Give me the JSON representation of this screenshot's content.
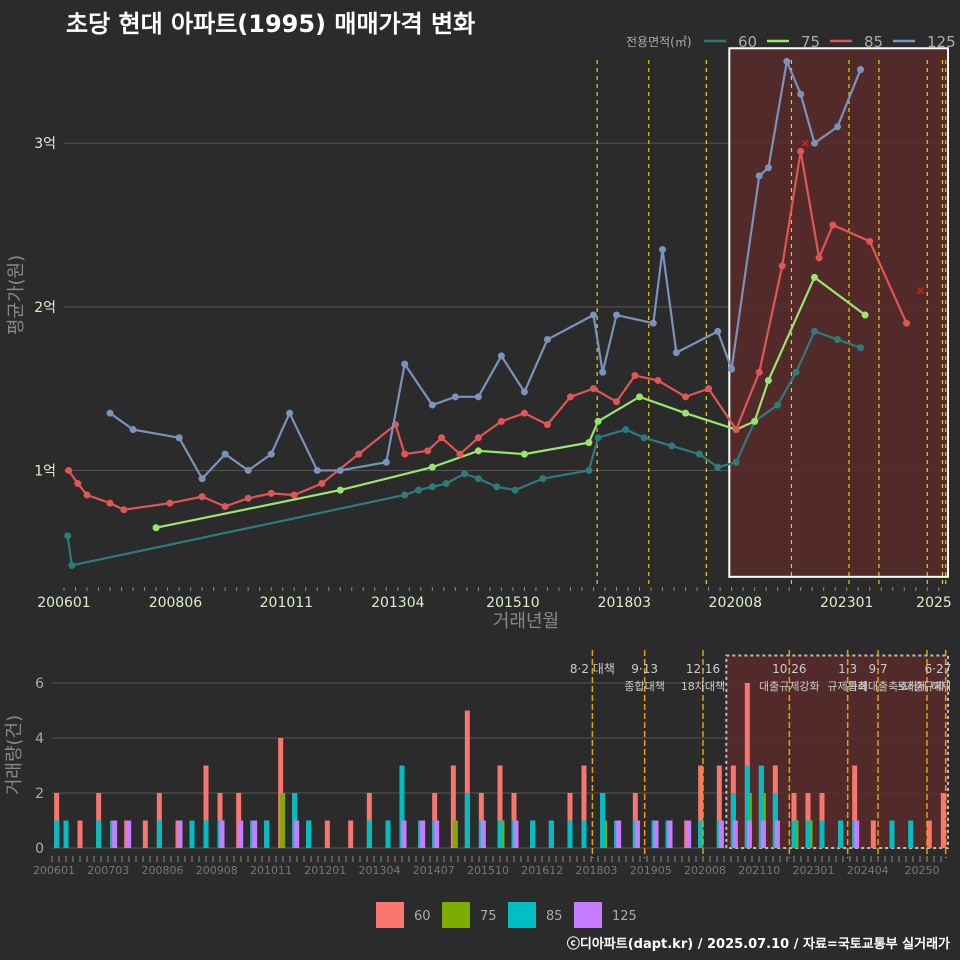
{
  "title": "초당 현대 아파트(1995) 매매가격 변화",
  "footer": "ⓒ디아파트(dapt.kr) / 2025.07.10 / 자료=국토교통부 실거래가",
  "colors": {
    "bg": "#2b2b2b",
    "grid": "#555555",
    "axis_text": "#ddeecc",
    "line60": "#2e7b7b",
    "line75": "#99e66e",
    "line85": "#e05555",
    "line125": "#7a93bb",
    "bar60": "#f8766d",
    "bar75": "#7cae00",
    "bar85": "#00bfc4",
    "bar125": "#c77cff",
    "policy": "#e6d000",
    "highlight_fill": "#5a2a2a",
    "highlight_edge": "#ffffff"
  },
  "chart_data": [
    {
      "type": "line",
      "ylabel": "평균가(원)",
      "xlabel": "거래년월",
      "legend_title": "전용면적(㎡)",
      "x_tick_labels": [
        "200601",
        "200806",
        "201011",
        "201304",
        "201510",
        "201803",
        "202008",
        "202301",
        "2025"
      ],
      "x_tick_values": [
        2006.0,
        2008.42,
        2010.83,
        2013.25,
        2015.75,
        2018.17,
        2020.58,
        2023.0,
        2025.0
      ],
      "xlim": [
        2006.0,
        2025.2
      ],
      "y_tick_labels": [
        "1억",
        "2억",
        "3억"
      ],
      "y_tick_values": [
        1.0,
        2.0,
        3.0
      ],
      "ylim": [
        0.3,
        3.6
      ],
      "policy_lines": [
        2017.58,
        2018.7,
        2019.95,
        2021.8,
        2023.05,
        2023.7,
        2024.75,
        2025.08,
        2025.15
      ],
      "highlight": {
        "x0": 2020.45,
        "x1": 2025.2,
        "y0": 0.35,
        "y1": 3.58
      },
      "series": [
        {
          "name": "60",
          "x": [
            2006.08,
            2006.17,
            2013.4,
            2013.7,
            2014.0,
            2014.3,
            2014.7,
            2015.0,
            2015.4,
            2015.8,
            2016.4,
            2017.4,
            2017.6,
            2018.2,
            2018.6,
            2019.2,
            2019.8,
            2020.2,
            2020.6,
            2021.0,
            2021.5,
            2021.9,
            2022.3,
            2022.8,
            2023.3
          ],
          "y": [
            0.6,
            0.42,
            0.85,
            0.88,
            0.9,
            0.92,
            0.98,
            0.95,
            0.9,
            0.88,
            0.95,
            1.0,
            1.2,
            1.25,
            1.2,
            1.15,
            1.1,
            1.02,
            1.05,
            1.3,
            1.4,
            1.6,
            1.85,
            1.8,
            1.75
          ]
        },
        {
          "name": "75",
          "x": [
            2008.0,
            2012.0,
            2014.0,
            2015.0,
            2016.0,
            2017.4,
            2017.6,
            2018.5,
            2019.5,
            2020.6,
            2021.0,
            2021.3,
            2022.3,
            2023.4
          ],
          "y": [
            0.65,
            0.88,
            1.02,
            1.12,
            1.1,
            1.17,
            1.3,
            1.45,
            1.35,
            1.25,
            1.3,
            1.55,
            2.18,
            1.95
          ]
        },
        {
          "name": "85",
          "x": [
            2006.1,
            2006.3,
            2006.5,
            2007.0,
            2007.3,
            2008.3,
            2009.0,
            2009.5,
            2010.0,
            2010.5,
            2011.0,
            2011.6,
            2012.4,
            2013.2,
            2013.4,
            2013.9,
            2014.2,
            2014.6,
            2015.0,
            2015.5,
            2016.0,
            2016.5,
            2017.0,
            2017.5,
            2018.0,
            2018.4,
            2018.9,
            2019.5,
            2020.0,
            2020.6,
            2021.1,
            2021.6,
            2022.0,
            2022.4,
            2022.7,
            2023.5,
            2024.3
          ],
          "y": [
            1.0,
            0.92,
            0.85,
            0.8,
            0.76,
            0.8,
            0.84,
            0.78,
            0.83,
            0.86,
            0.85,
            0.92,
            1.1,
            1.28,
            1.1,
            1.12,
            1.2,
            1.1,
            1.2,
            1.3,
            1.35,
            1.28,
            1.45,
            1.5,
            1.42,
            1.58,
            1.55,
            1.45,
            1.5,
            1.25,
            1.6,
            2.25,
            2.95,
            2.3,
            2.5,
            2.4,
            1.9
          ]
        },
        {
          "name": "125",
          "x": [
            2007.0,
            2007.5,
            2008.5,
            2009.0,
            2009.5,
            2010.0,
            2010.5,
            2010.9,
            2011.5,
            2012.0,
            2013.0,
            2013.4,
            2014.0,
            2014.5,
            2015.0,
            2015.5,
            2016.0,
            2016.5,
            2017.5,
            2017.7,
            2018.0,
            2018.8,
            2019.0,
            2019.3,
            2020.2,
            2020.5,
            2021.1,
            2021.3,
            2021.7,
            2022.0,
            2022.3,
            2022.8,
            2023.3
          ],
          "y": [
            1.35,
            1.25,
            1.2,
            0.95,
            1.1,
            1.0,
            1.1,
            1.35,
            1.0,
            1.0,
            1.05,
            1.65,
            1.4,
            1.45,
            1.45,
            1.7,
            1.48,
            1.8,
            1.95,
            1.6,
            1.95,
            1.9,
            2.35,
            1.72,
            1.85,
            1.62,
            2.8,
            2.85,
            3.5,
            3.3,
            3.0,
            3.1,
            3.45
          ]
        }
      ],
      "markers_x": [
        {
          "x": 2022.1,
          "y": 3.0
        },
        {
          "x": 2024.6,
          "y": 2.1
        }
      ]
    },
    {
      "type": "bar",
      "ylabel": "거래량(건)",
      "x_tick_labels": [
        "200601",
        "200703",
        "200806",
        "200908",
        "201011",
        "201201",
        "201304",
        "201407",
        "201510",
        "201612",
        "201803",
        "201905",
        "202008",
        "202110",
        "202301",
        "202404",
        "20250"
      ],
      "y_tick_labels": [
        "0",
        "2",
        "4",
        "6"
      ],
      "y_tick_values": [
        0,
        2,
        4,
        6
      ],
      "ylim": [
        0,
        7.2
      ],
      "legend": [
        "60",
        "75",
        "85",
        "125"
      ],
      "policy_labels": [
        {
          "x": 2017.58,
          "text1": "8·2 대책",
          "text2": ""
        },
        {
          "x": 2018.7,
          "text1": "9·13",
          "text2": "종합대책"
        },
        {
          "x": 2019.95,
          "text1": "12·16",
          "text2": "18차대책"
        },
        {
          "x": 2021.8,
          "text1": "10·26",
          "text2": "대출규제강화"
        },
        {
          "x": 2023.05,
          "text1": "1·3",
          "text2": "규제완화"
        },
        {
          "x": 2023.7,
          "text1": "9·7",
          "text2": "특례대출축소"
        },
        {
          "x": 2024.75,
          "text1": "",
          "text2": "토허제 해제"
        },
        {
          "x": 2025.15,
          "text1": "6·27",
          "text2": "대출규제"
        }
      ],
      "bars": [
        {
          "x": 2006.1,
          "v": [
            2,
            0,
            1,
            0
          ]
        },
        {
          "x": 2006.3,
          "v": [
            1,
            0,
            1,
            0
          ]
        },
        {
          "x": 2006.6,
          "v": [
            1,
            0,
            0,
            0
          ]
        },
        {
          "x": 2007.0,
          "v": [
            2,
            0,
            1,
            0
          ]
        },
        {
          "x": 2007.3,
          "v": [
            1,
            0,
            1,
            1
          ]
        },
        {
          "x": 2007.6,
          "v": [
            1,
            0,
            0,
            1
          ]
        },
        {
          "x": 2008.0,
          "v": [
            1,
            0,
            0,
            0
          ]
        },
        {
          "x": 2008.3,
          "v": [
            2,
            0,
            1,
            0
          ]
        },
        {
          "x": 2008.7,
          "v": [
            1,
            0,
            0,
            1
          ]
        },
        {
          "x": 2009.0,
          "v": [
            1,
            0,
            1,
            0
          ]
        },
        {
          "x": 2009.3,
          "v": [
            3,
            0,
            1,
            0
          ]
        },
        {
          "x": 2009.6,
          "v": [
            2,
            0,
            1,
            1
          ]
        },
        {
          "x": 2010.0,
          "v": [
            2,
            0,
            0,
            1
          ]
        },
        {
          "x": 2010.3,
          "v": [
            1,
            0,
            1,
            1
          ]
        },
        {
          "x": 2010.6,
          "v": [
            1,
            0,
            1,
            0
          ]
        },
        {
          "x": 2010.9,
          "v": [
            4,
            2,
            0,
            0
          ]
        },
        {
          "x": 2011.2,
          "v": [
            2,
            0,
            2,
            1
          ]
        },
        {
          "x": 2011.5,
          "v": [
            1,
            0,
            1,
            0
          ]
        },
        {
          "x": 2011.9,
          "v": [
            1,
            0,
            0,
            0
          ]
        },
        {
          "x": 2012.4,
          "v": [
            1,
            0,
            0,
            0
          ]
        },
        {
          "x": 2012.8,
          "v": [
            2,
            0,
            1,
            0
          ]
        },
        {
          "x": 2013.2,
          "v": [
            1,
            0,
            1,
            0
          ]
        },
        {
          "x": 2013.5,
          "v": [
            3,
            0,
            3,
            1
          ]
        },
        {
          "x": 2013.9,
          "v": [
            1,
            0,
            1,
            1
          ]
        },
        {
          "x": 2014.2,
          "v": [
            2,
            0,
            1,
            1
          ]
        },
        {
          "x": 2014.6,
          "v": [
            3,
            1,
            0,
            0
          ]
        },
        {
          "x": 2014.9,
          "v": [
            5,
            0,
            2,
            0
          ]
        },
        {
          "x": 2015.2,
          "v": [
            2,
            0,
            1,
            1
          ]
        },
        {
          "x": 2015.6,
          "v": [
            3,
            1,
            1,
            0
          ]
        },
        {
          "x": 2015.9,
          "v": [
            2,
            0,
            1,
            1
          ]
        },
        {
          "x": 2016.3,
          "v": [
            1,
            0,
            1,
            0
          ]
        },
        {
          "x": 2016.7,
          "v": [
            1,
            0,
            1,
            0
          ]
        },
        {
          "x": 2017.1,
          "v": [
            2,
            0,
            1,
            0
          ]
        },
        {
          "x": 2017.4,
          "v": [
            3,
            0,
            1,
            0
          ]
        },
        {
          "x": 2017.8,
          "v": [
            2,
            1,
            2,
            0
          ]
        },
        {
          "x": 2018.1,
          "v": [
            1,
            0,
            1,
            1
          ]
        },
        {
          "x": 2018.5,
          "v": [
            2,
            1,
            1,
            1
          ]
        },
        {
          "x": 2018.9,
          "v": [
            1,
            0,
            1,
            1
          ]
        },
        {
          "x": 2019.2,
          "v": [
            1,
            0,
            1,
            1
          ]
        },
        {
          "x": 2019.6,
          "v": [
            1,
            0,
            0,
            1
          ]
        },
        {
          "x": 2019.9,
          "v": [
            3,
            0,
            1,
            0
          ]
        },
        {
          "x": 2020.3,
          "v": [
            3,
            1,
            1,
            1
          ]
        },
        {
          "x": 2020.6,
          "v": [
            3,
            0,
            2,
            1
          ]
        },
        {
          "x": 2020.9,
          "v": [
            6,
            2,
            3,
            1
          ]
        },
        {
          "x": 2021.2,
          "v": [
            3,
            2,
            3,
            1
          ]
        },
        {
          "x": 2021.5,
          "v": [
            3,
            1,
            2,
            1
          ]
        },
        {
          "x": 2021.9,
          "v": [
            2,
            1,
            1,
            0
          ]
        },
        {
          "x": 2022.2,
          "v": [
            2,
            1,
            1,
            0
          ]
        },
        {
          "x": 2022.5,
          "v": [
            2,
            0,
            1,
            0
          ]
        },
        {
          "x": 2022.9,
          "v": [
            1,
            0,
            1,
            0
          ]
        },
        {
          "x": 2023.2,
          "v": [
            3,
            0,
            1,
            1
          ]
        },
        {
          "x": 2023.6,
          "v": [
            1,
            0,
            0,
            0
          ]
        },
        {
          "x": 2024.0,
          "v": [
            1,
            0,
            1,
            0
          ]
        },
        {
          "x": 2024.4,
          "v": [
            0,
            0,
            1,
            0
          ]
        },
        {
          "x": 2024.8,
          "v": [
            1,
            0,
            0,
            0
          ]
        },
        {
          "x": 2025.1,
          "v": [
            2,
            0,
            0,
            0
          ]
        }
      ]
    }
  ]
}
